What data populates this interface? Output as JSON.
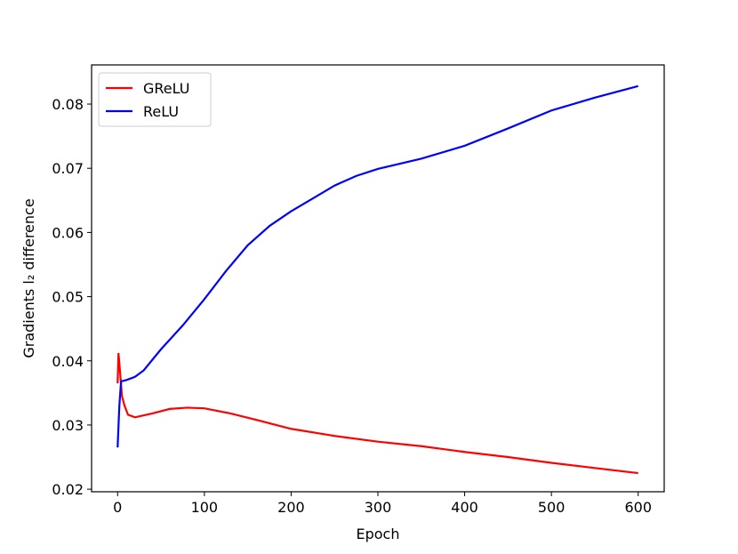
{
  "chart_data": {
    "type": "line",
    "x_label": "Epoch",
    "y_label": "Gradients l₂ difference",
    "xlim": [
      -30,
      630
    ],
    "xticks": [
      0,
      100,
      200,
      300,
      400,
      500,
      600
    ],
    "ylim": [
      0.0196,
      0.0861
    ],
    "yticks": [
      0.02,
      0.03,
      0.04,
      0.05,
      0.06,
      0.07,
      0.08
    ],
    "legend": "upper left",
    "series": [
      {
        "name": "GReLU",
        "color": "#ff0000",
        "x": [
          0,
          1,
          3,
          5,
          8,
          12,
          20,
          40,
          60,
          80,
          100,
          130,
          160,
          200,
          250,
          300,
          350,
          400,
          450,
          500,
          550,
          600
        ],
        "values": [
          0.0365,
          0.0412,
          0.038,
          0.0345,
          0.033,
          0.0316,
          0.0312,
          0.0318,
          0.0325,
          0.0327,
          0.0326,
          0.0318,
          0.0308,
          0.0294,
          0.0283,
          0.0274,
          0.0267,
          0.0258,
          0.025,
          0.0241,
          0.0233,
          0.0225
        ]
      },
      {
        "name": "ReLU",
        "color": "#0000ff",
        "x": [
          0,
          2,
          4,
          10,
          20,
          30,
          50,
          75,
          100,
          125,
          150,
          175,
          200,
          225,
          250,
          275,
          300,
          350,
          400,
          450,
          500,
          550,
          600
        ],
        "values": [
          0.0265,
          0.033,
          0.0368,
          0.037,
          0.0375,
          0.0385,
          0.0418,
          0.0455,
          0.0496,
          0.054,
          0.058,
          0.061,
          0.0633,
          0.0653,
          0.0673,
          0.0688,
          0.0699,
          0.0715,
          0.0735,
          0.0762,
          0.079,
          0.081,
          0.0828
        ]
      }
    ]
  }
}
